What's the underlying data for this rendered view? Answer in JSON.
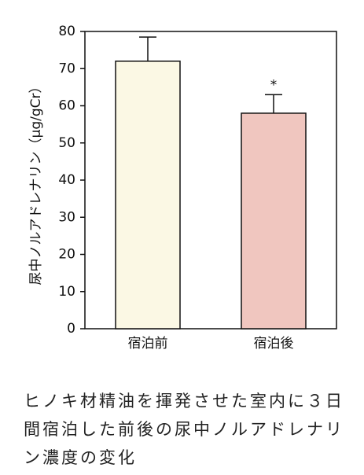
{
  "chart_data": {
    "type": "bar",
    "y_label": "尿中ノルアドレナリン（μg/gCr）",
    "categories": [
      "宿泊前",
      "宿泊後"
    ],
    "values": [
      72,
      58
    ],
    "errors": [
      6.5,
      5
    ],
    "colors": [
      "#fbf8e4",
      "#f0c6bf"
    ],
    "ylim": [
      0,
      80
    ],
    "yticks": [
      0,
      10,
      20,
      30,
      40,
      50,
      60,
      70,
      80
    ],
    "annotations": [
      {
        "text": "*",
        "x": "宿泊後"
      }
    ]
  },
  "caption": "ヒノキ材精油を揮発させた室内に３日間宿泊した前後の尿中ノルアドレナリン濃度の変化"
}
